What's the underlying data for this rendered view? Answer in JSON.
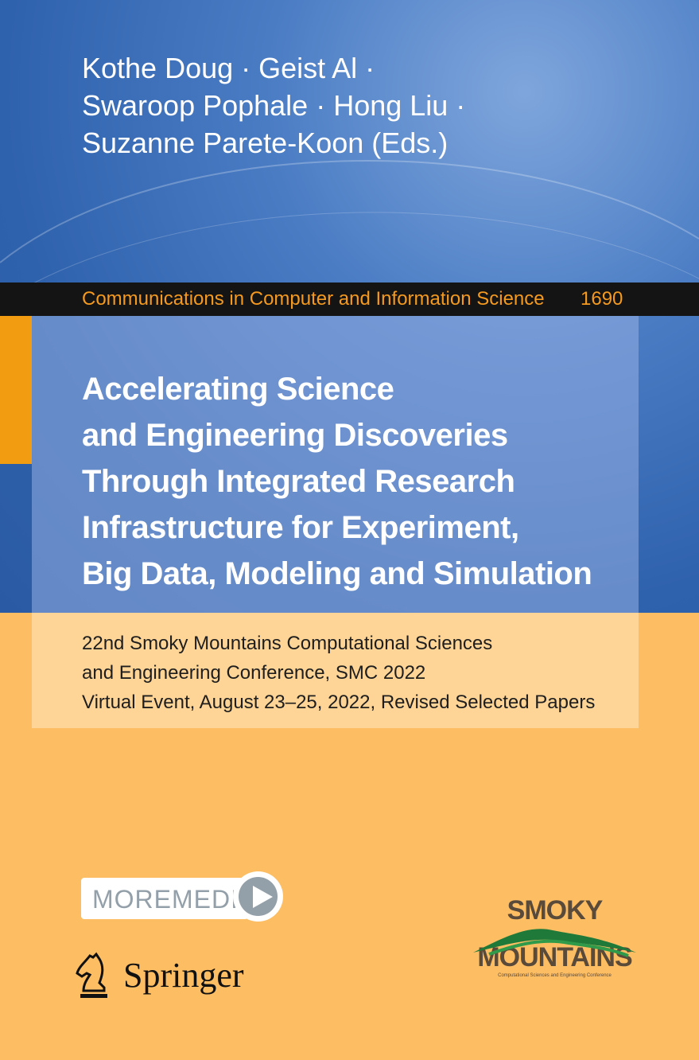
{
  "authors": [
    "Kothe Doug · Geist Al ·",
    "Swaroop Pophale · Hong Liu ·",
    "Suzanne Parete-Koon (Eds.)"
  ],
  "series": {
    "name": "Communications in Computer and Information Science",
    "volume": "1690"
  },
  "title": [
    "Accelerating Science",
    "and Engineering Discoveries",
    "Through Integrated Research",
    "Infrastructure for Experiment,",
    "Big Data, Modeling and Simulation"
  ],
  "subtitle": [
    "22nd Smoky Mountains Computational Sciences",
    "and Engineering Conference, SMC 2022",
    "Virtual Event, August 23–25, 2022, Revised Selected Papers"
  ],
  "moremedia": {
    "label": "MOREMEDIA",
    "icon": "play-icon"
  },
  "publisher": {
    "name": "Springer",
    "icon": "knight-chess-icon"
  },
  "conference_logo": {
    "line1": "SMOKY",
    "line2": "MOUNTAINS",
    "line3": "Computational Sciences and Engineering Conference"
  },
  "colors": {
    "blue": "#2f62ad",
    "orange": "#fdbd63",
    "accent": "#f59a1e",
    "banner": "#141414"
  }
}
